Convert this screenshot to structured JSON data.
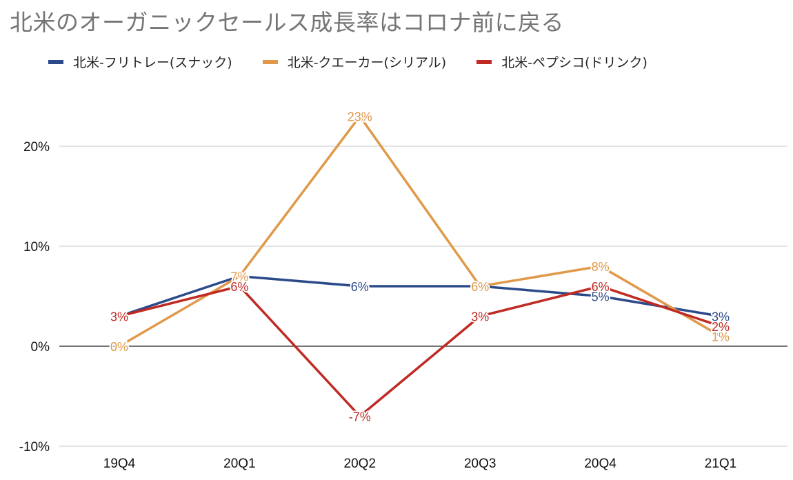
{
  "chart_data": {
    "type": "line",
    "title": "北米のオーガニックセールス成長率はコロナ前に戻る",
    "xlabel": "",
    "ylabel": "",
    "categories": [
      "19Q4",
      "20Q1",
      "20Q2",
      "20Q3",
      "20Q4",
      "21Q1"
    ],
    "ylim": [
      -10,
      20
    ],
    "yticks": [
      "20%",
      "10%",
      "0%",
      "-10%"
    ],
    "ytick_values": [
      20,
      10,
      0,
      -10
    ],
    "grid": true,
    "legend_position": "top-left",
    "series": [
      {
        "name": "北米-フリトレー(スナック)",
        "color": "#2b4a8a",
        "values": [
          3,
          7,
          6,
          6,
          5,
          3
        ],
        "labels": [
          "",
          "",
          "6%",
          "",
          "5%",
          "3%"
        ]
      },
      {
        "name": "北米-クエーカー(シリアル)",
        "color": "#e0994a",
        "values": [
          0,
          7,
          23,
          6,
          8,
          1
        ],
        "labels": [
          "0%",
          "7%",
          "23%",
          "6%",
          "8%",
          "1%"
        ]
      },
      {
        "name": "北米-ペプシコ(ドリンク)",
        "color": "#c02a24",
        "values": [
          3,
          6,
          -7,
          3,
          6,
          2
        ],
        "labels": [
          "3%",
          "6%",
          "-7%",
          "3%",
          "6%",
          "2%"
        ]
      }
    ]
  }
}
